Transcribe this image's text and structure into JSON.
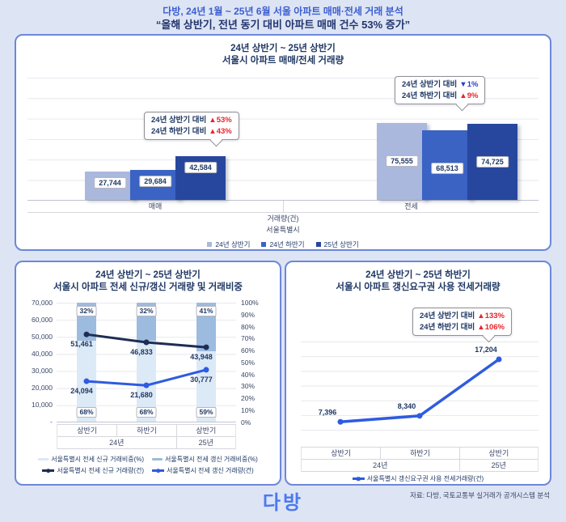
{
  "page": {
    "header_title": "다방, 24년 1월 ~ 25년 6월 서울 아파트 매매·전세 거래 분석",
    "header_subtitle": "“올해 상반기, 전년 동기 대비 아파트 매매 건수 53% 증가”",
    "footer_logo": "다방",
    "footer_source": "자료: 다방, 국토교통부 실거래가 공개시스템 분석"
  },
  "chart_data": [
    {
      "type": "bar",
      "title_line1": "24년 상반기 ~ 25년 상반기",
      "title_line2": "서울시 아파트 매매/전세 거래량",
      "categories": [
        "매매",
        "전세"
      ],
      "series": [
        {
          "name": "24년 상반기",
          "color": "#a9b8dc",
          "values": [
            27744,
            75555
          ]
        },
        {
          "name": "24년 하반기",
          "color": "#3a63c4",
          "values": [
            29684,
            68513
          ]
        },
        {
          "name": "25년 상반기",
          "color": "#27479e",
          "values": [
            42584,
            74725
          ]
        }
      ],
      "ylim": [
        0,
        120000
      ],
      "axis_title": "거래량(건)",
      "axis_region": "서울특별시",
      "legend_position": "bottom",
      "grid": true,
      "callout_sale": {
        "line1_label": "24년 상반기 대비",
        "line1_delta": "▲53%",
        "line1_color": "#e8252c",
        "line2_label": "24년 하반기 대비",
        "line2_delta": "▲43%",
        "line2_color": "#e8252c"
      },
      "callout_jeonse": {
        "line1_label": "24년 상반기 대비",
        "line1_delta": "▼1%",
        "line1_color": "#2b3fc8",
        "line2_label": "24년 하반기 대비",
        "line2_delta": "▲9%",
        "line2_color": "#e8252c"
      }
    },
    {
      "type": "combo_stacked_bar_line",
      "title_line1": "24년 상반기 ~ 25년 상반기",
      "title_line2": "서울시 아파트 전세 신규/갱신 거래량 및 거래비중",
      "x": [
        "상반기",
        "하반기",
        "상반기"
      ],
      "x_years": [
        "24년",
        "25년"
      ],
      "left_axis_ticks": [
        "70,000",
        "60,000",
        "50,000",
        "40,000",
        "30,000",
        "20,000",
        "10,000",
        "-"
      ],
      "right_axis_ticks": [
        "100%",
        "90%",
        "80%",
        "70%",
        "60%",
        "50%",
        "40%",
        "30%",
        "20%",
        "10%",
        "0%"
      ],
      "ylim_left": [
        0,
        70000
      ],
      "ylim_right_pct": [
        0,
        100
      ],
      "grid": true,
      "stack_top": {
        "name": "서울특별시 전세 갱신 거래비중(%)",
        "color": "#9cbbdf",
        "values_pct": [
          32,
          32,
          41
        ],
        "labels": [
          "32%",
          "32%",
          "41%"
        ]
      },
      "stack_bottom": {
        "name": "서울특별시 전세 신규 거래비중(%)",
        "color": "#dce9f6",
        "values_pct": [
          68,
          68,
          59
        ],
        "labels": [
          "68%",
          "68%",
          "59%"
        ]
      },
      "line_new": {
        "name": "서울특별시 전세 신규 거래량(건)",
        "color": "#1e2d54",
        "values": [
          51461,
          46833,
          43948
        ]
      },
      "line_renew": {
        "name": "서울특별시 전세 갱신 거래량(건)",
        "color": "#2e5be0",
        "values": [
          24094,
          21680,
          30777
        ]
      }
    },
    {
      "type": "line",
      "title_line1": "24년 상반기 ~ 25년 하반기",
      "title_line2": "서울시 아파트 갱신요구권 사용 전세거래량",
      "x": [
        "상반기",
        "하반기",
        "상반기"
      ],
      "x_years": [
        "24년",
        "25년"
      ],
      "line": {
        "name": "서울특별시 갱신요구권 사용 전세거래량(건)",
        "color": "#2e5be0",
        "values": [
          7396,
          8340,
          17204
        ]
      },
      "ylim_est": [
        4000,
        20000
      ],
      "grid": true,
      "callout": {
        "line1_label": "24년 상반기 대비",
        "line1_delta": "▲133%",
        "line1_color": "#e8252c",
        "line2_label": "24년 하반기 대비",
        "line2_delta": "▲106%",
        "line2_color": "#e8252c"
      }
    }
  ]
}
